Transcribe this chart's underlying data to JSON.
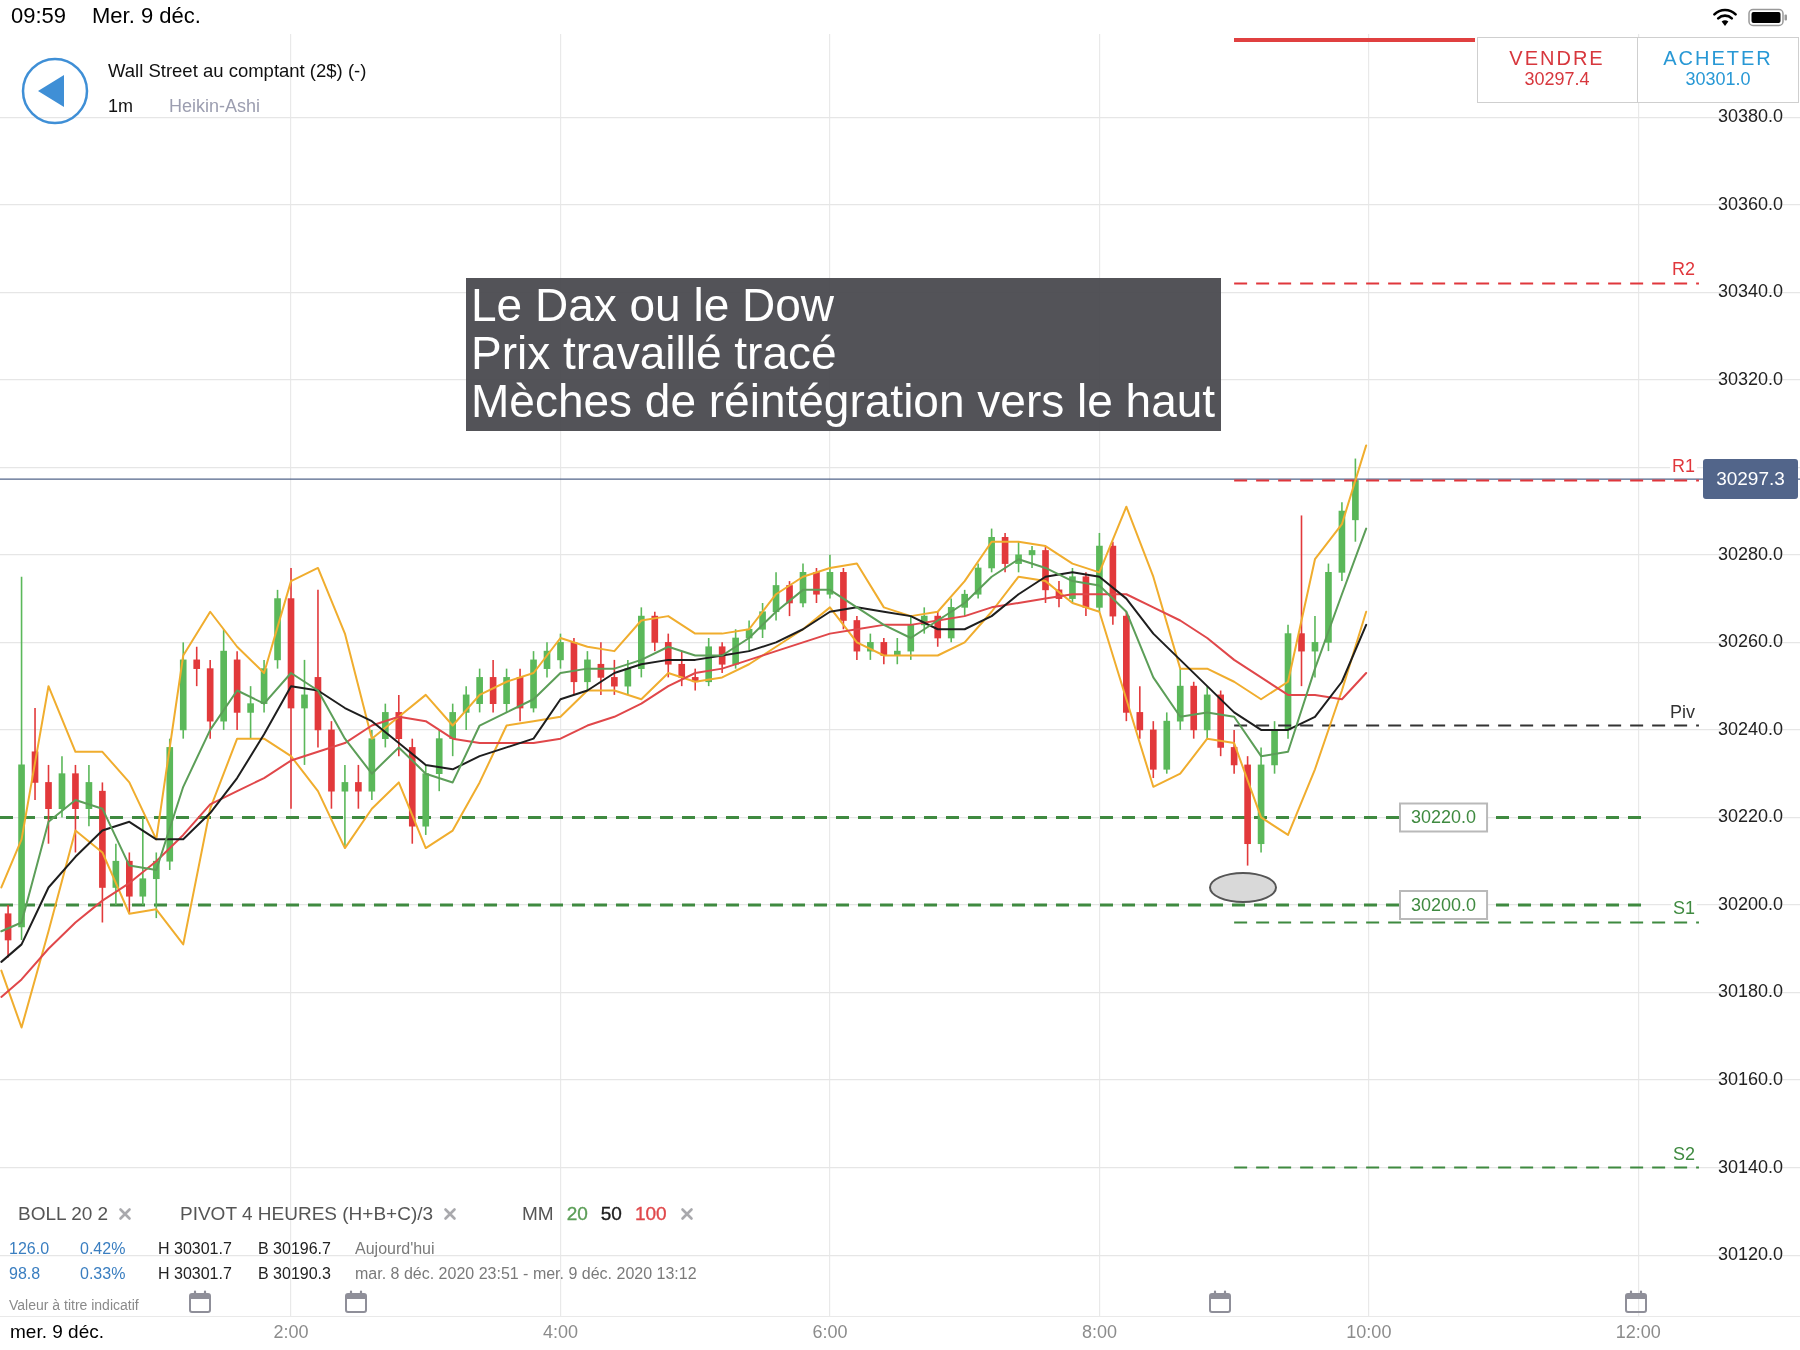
{
  "chart_data": {
    "type": "candlestick",
    "title": "Wall Street au comptant (2$) (-)",
    "legend_title": "MM",
    "annotations": [
      "09:59",
      "Mer. 9 déc.",
      "1m",
      "Heikin-Ashi",
      "VENDRE",
      "30297.4",
      "ACHETER",
      "30301.0",
      "Le Dax ou le Dow",
      "Prix travaillé tracé",
      "Mèches de réintégration vers le haut",
      "BOLL 20 2",
      "PIVOT 4 HEURES (H+B+C)/3",
      "126.0",
      "0.42%",
      "H 30301.7",
      "B 30196.7",
      "Aujourd'hui",
      "98.8",
      "0.33%",
      "H 30301.7",
      "B 30190.3",
      "mar. 8 déc. 2020 23:51 - mer. 9 déc. 2020 13:12",
      "Valeur à titre indicatif",
      "mer. 9 déc.",
      {
        "text": "R2",
        "y": 30342
      },
      {
        "text": "R1",
        "y": 30297
      },
      {
        "text": "Piv",
        "y": 30241
      },
      {
        "text": "S1",
        "y": 30196
      },
      {
        "text": "S2",
        "y": 30140
      },
      {
        "text": "30220.0",
        "y": 30220
      },
      {
        "text": "30200.0",
        "y": 30200
      },
      {
        "text": "30297.3",
        "y": 30297.3
      }
    ],
    "x": [
      -0.1,
      0,
      0.1,
      0.2,
      0.3,
      0.4,
      0.5,
      0.6,
      0.7,
      0.8,
      0.9,
      1,
      1.1,
      1.2,
      1.3,
      1.4,
      1.5,
      1.6,
      1.7,
      1.8,
      1.9,
      2,
      2.1,
      2.2,
      2.3,
      2.4,
      2.5,
      2.6,
      2.7,
      2.8,
      2.9,
      3,
      3.1,
      3.2,
      3.3,
      3.4,
      3.5,
      3.6,
      3.7,
      3.8,
      3.9,
      4,
      4.1,
      4.2,
      4.3,
      4.4,
      4.5,
      4.6,
      4.7,
      4.8,
      4.9,
      5,
      5.1,
      5.2,
      5.3,
      5.4,
      5.5,
      5.6,
      5.7,
      5.8,
      5.9,
      6,
      6.1,
      6.2,
      6.3,
      6.4,
      6.5,
      6.6,
      6.7,
      6.8,
      6.9,
      7,
      7.1,
      7.2,
      7.3,
      7.4,
      7.5,
      7.6,
      7.7,
      7.8,
      7.9,
      8,
      8.1,
      8.2,
      8.3,
      8.4,
      8.5,
      8.6,
      8.7,
      8.8,
      8.9,
      9,
      9.1,
      9.2,
      9.3,
      9.4,
      9.5,
      9.6,
      9.7,
      9.8,
      9.9
    ],
    "ohlc": [
      [
        30198,
        30200,
        30188,
        30192
      ],
      [
        30195,
        30275,
        30192,
        30232
      ],
      [
        30235,
        30245,
        30224,
        30228
      ],
      [
        30228,
        30232,
        30214,
        30222
      ],
      [
        30222,
        30234,
        30220,
        30230
      ],
      [
        30230,
        30232,
        30212,
        30222
      ],
      [
        30222,
        30232,
        30218,
        30228
      ],
      [
        30226,
        30228,
        30196,
        30204
      ],
      [
        30204,
        30214,
        30200,
        30210
      ],
      [
        30210,
        30212,
        30198,
        30202
      ],
      [
        30202,
        30220,
        30200,
        30206
      ],
      [
        30206,
        30212,
        30197,
        30210
      ],
      [
        30210,
        30238,
        30208,
        30236
      ],
      [
        30240,
        30260,
        30238,
        30256
      ],
      [
        30256,
        30259,
        30250,
        30254
      ],
      [
        30254,
        30256,
        30238,
        30242
      ],
      [
        30242,
        30263,
        30240,
        30258
      ],
      [
        30256,
        30258,
        30240,
        30244
      ],
      [
        30244,
        30250,
        30238,
        30246
      ],
      [
        30246,
        30256,
        30244,
        30254
      ],
      [
        30256,
        30272,
        30254,
        30270
      ],
      [
        30270,
        30277,
        30222,
        30245
      ],
      [
        30245,
        30256,
        30232,
        30248
      ],
      [
        30252,
        30272,
        30236,
        30240
      ],
      [
        30240,
        30242,
        30222,
        30226
      ],
      [
        30226,
        30232,
        30213,
        30228
      ],
      [
        30228,
        30232,
        30222,
        30226
      ],
      [
        30226,
        30240,
        30224,
        30238
      ],
      [
        30238,
        30246,
        30236,
        30244
      ],
      [
        30244,
        30248,
        30234,
        30238
      ],
      [
        30236,
        30238,
        30214,
        30218
      ],
      [
        30218,
        30232,
        30216,
        30230
      ],
      [
        30230,
        30240,
        30226,
        30238
      ],
      [
        30238,
        30246,
        30234,
        30244
      ],
      [
        30244,
        30250,
        30240,
        30248
      ],
      [
        30246,
        30254,
        30244,
        30252
      ],
      [
        30252,
        30256,
        30244,
        30246
      ],
      [
        30246,
        30254,
        30244,
        30252
      ],
      [
        30252,
        30254,
        30242,
        30245
      ],
      [
        30245,
        30258,
        30244,
        30256
      ],
      [
        30254,
        30260,
        30252,
        30258
      ],
      [
        30256,
        30262,
        30254,
        30260
      ],
      [
        30260,
        30261,
        30248,
        30251
      ],
      [
        30251,
        30258,
        30249,
        30256
      ],
      [
        30255,
        30260,
        30248,
        30252
      ],
      [
        30252,
        30256,
        30248,
        30250
      ],
      [
        30250,
        30256,
        30248,
        30254
      ],
      [
        30254,
        30268,
        30252,
        30266
      ],
      [
        30266,
        30267,
        30258,
        30260
      ],
      [
        30260,
        30262,
        30252,
        30255
      ],
      [
        30255,
        30258,
        30250,
        30252
      ],
      [
        30252,
        30254,
        30249,
        30251
      ],
      [
        30251,
        30261,
        30250,
        30259
      ],
      [
        30259,
        30260,
        30253,
        30255
      ],
      [
        30255,
        30263,
        30254,
        30261
      ],
      [
        30261,
        30265,
        30258,
        30263
      ],
      [
        30263,
        30269,
        30261,
        30267
      ],
      [
        30267,
        30276,
        30265,
        30273
      ],
      [
        30273,
        30274,
        30266,
        30269
      ],
      [
        30269,
        30278,
        30268,
        30276
      ],
      [
        30276,
        30277,
        30269,
        30271
      ],
      [
        30271,
        30280,
        30270,
        30276
      ],
      [
        30276,
        30277,
        30263,
        30265
      ],
      [
        30265,
        30266,
        30256,
        30258
      ],
      [
        30258,
        30262,
        30256,
        30260
      ],
      [
        30260,
        30261,
        30255,
        30257
      ],
      [
        30257,
        30261,
        30255,
        30258
      ],
      [
        30258,
        30266,
        30256,
        30264
      ],
      [
        30264,
        30268,
        30262,
        30266
      ],
      [
        30266,
        30267,
        30259,
        30261
      ],
      [
        30261,
        30270,
        30260,
        30268
      ],
      [
        30268,
        30272,
        30266,
        30271
      ],
      [
        30271,
        30278,
        30270,
        30277
      ],
      [
        30277,
        30286,
        30276,
        30284
      ],
      [
        30284,
        30285,
        30276,
        30278
      ],
      [
        30278,
        30283,
        30276,
        30280
      ],
      [
        30280,
        30282,
        30277,
        30281
      ],
      [
        30281,
        30282,
        30269,
        30272
      ],
      [
        30272,
        30274,
        30268,
        30270
      ],
      [
        30270,
        30277,
        30269,
        30275
      ],
      [
        30275,
        30276,
        30266,
        30268
      ],
      [
        30268,
        30285,
        30267,
        30282
      ],
      [
        30282,
        30283,
        30264,
        30266
      ],
      [
        30266,
        30267,
        30242,
        30244
      ],
      [
        30244,
        30250,
        30238,
        30240
      ],
      [
        30240,
        30242,
        30229,
        30231
      ],
      [
        30231,
        30244,
        30230,
        30242
      ],
      [
        30242,
        30254,
        30240,
        30250
      ],
      [
        30250,
        30251,
        30238,
        30240
      ],
      [
        30240,
        30250,
        30238,
        30248
      ],
      [
        30248,
        30249,
        30234,
        30236
      ],
      [
        30236,
        30240,
        30230,
        30232
      ],
      [
        30232,
        30234,
        30209,
        30214
      ],
      [
        30214,
        30236,
        30212,
        30232
      ],
      [
        30232,
        30242,
        30230,
        30240
      ],
      [
        30240,
        30264,
        30238,
        30262
      ],
      [
        30262,
        30289,
        30250,
        30258
      ],
      [
        30258,
        30266,
        30252,
        30260
      ],
      [
        30260,
        30278,
        30258,
        30276
      ],
      [
        30276,
        30292,
        30274,
        30290
      ],
      [
        30288,
        30302,
        30283,
        30297
      ]
    ],
    "colors": [
      "#e2393b",
      "#5bb85a",
      "#e2393b",
      "#e2393b",
      "#5bb85a",
      "#e2393b",
      "#5bb85a",
      "#e2393b",
      "#5bb85a",
      "#e2393b",
      "#5bb85a",
      "#5bb85a",
      "#5bb85a",
      "#5bb85a",
      "#e2393b",
      "#e2393b",
      "#5bb85a",
      "#e2393b",
      "#5bb85a",
      "#5bb85a",
      "#5bb85a",
      "#e2393b",
      "#5bb85a",
      "#e2393b",
      "#e2393b",
      "#5bb85a",
      "#e2393b",
      "#5bb85a",
      "#5bb85a",
      "#e2393b",
      "#e2393b",
      "#5bb85a",
      "#5bb85a",
      "#5bb85a",
      "#5bb85a",
      "#5bb85a",
      "#e2393b",
      "#5bb85a",
      "#e2393b",
      "#5bb85a",
      "#5bb85a",
      "#5bb85a",
      "#e2393b",
      "#5bb85a",
      "#e2393b",
      "#e2393b",
      "#5bb85a",
      "#5bb85a",
      "#e2393b",
      "#e2393b",
      "#e2393b",
      "#e2393b",
      "#5bb85a",
      "#e2393b",
      "#5bb85a",
      "#5bb85a",
      "#5bb85a",
      "#5bb85a",
      "#e2393b",
      "#5bb85a",
      "#e2393b",
      "#5bb85a",
      "#e2393b",
      "#e2393b",
      "#5bb85a",
      "#e2393b",
      "#5bb85a",
      "#5bb85a",
      "#5bb85a",
      "#e2393b",
      "#5bb85a",
      "#5bb85a",
      "#5bb85a",
      "#5bb85a",
      "#e2393b",
      "#5bb85a",
      "#5bb85a",
      "#e2393b",
      "#e2393b",
      "#5bb85a",
      "#e2393b",
      "#5bb85a",
      "#e2393b",
      "#e2393b",
      "#e2393b",
      "#e2393b",
      "#5bb85a",
      "#5bb85a",
      "#e2393b",
      "#5bb85a",
      "#e2393b",
      "#e2393b",
      "#e2393b",
      "#5bb85a",
      "#5bb85a",
      "#5bb85a",
      "#e2393b",
      "#5bb85a",
      "#5bb85a",
      "#5bb85a",
      "#5bb85a"
    ],
    "series": [
      {
        "name": "20",
        "type": "line",
        "color": "#5c9e58",
        "x": [
          -0.15,
          0,
          0.2,
          0.4,
          0.6,
          0.8,
          1,
          1.2,
          1.4,
          1.6,
          1.8,
          2,
          2.2,
          2.4,
          2.6,
          2.8,
          3,
          3.2,
          3.4,
          3.6,
          3.8,
          4,
          4.2,
          4.4,
          4.6,
          4.8,
          5,
          5.2,
          5.4,
          5.6,
          5.8,
          6,
          6.2,
          6.4,
          6.6,
          6.8,
          7,
          7.2,
          7.4,
          7.6,
          7.8,
          8,
          8.2,
          8.4,
          8.6,
          8.8,
          9,
          9.2,
          9.4,
          9.6,
          9.8,
          9.98
        ],
        "values": [
          30194,
          30196,
          30219,
          30224,
          30222,
          30209,
          30208,
          30227,
          30240,
          30249,
          30246,
          30253,
          30249,
          30238,
          30230,
          30236,
          30230,
          30228,
          30241,
          30244,
          30247,
          30253,
          30254,
          30254,
          30256,
          30259,
          30257,
          30257,
          30261,
          30267,
          30272,
          30272,
          30268,
          30264,
          30261,
          30265,
          30269,
          30275,
          30279,
          30277,
          30274,
          30273,
          30267,
          30252,
          30243,
          30244,
          30243,
          30234,
          30235,
          30254,
          30271,
          30286
        ]
      },
      {
        "name": "50",
        "type": "line",
        "color": "#1e1e1e",
        "x": [
          -0.15,
          0,
          0.2,
          0.4,
          0.6,
          0.8,
          1,
          1.2,
          1.4,
          1.6,
          1.8,
          2,
          2.2,
          2.4,
          2.6,
          2.8,
          3,
          3.2,
          3.4,
          3.6,
          3.8,
          4,
          4.2,
          4.4,
          4.6,
          4.8,
          5,
          5.2,
          5.4,
          5.6,
          5.8,
          6,
          6.2,
          6.4,
          6.6,
          6.8,
          7,
          7.2,
          7.4,
          7.6,
          7.8,
          8,
          8.2,
          8.4,
          8.6,
          8.8,
          9,
          9.2,
          9.4,
          9.6,
          9.8,
          9.98
        ],
        "values": [
          30187,
          30191,
          30204,
          30211,
          30217,
          30219,
          30215,
          30215,
          30221,
          30229,
          30239,
          30250,
          30249,
          30245,
          30242,
          30237,
          30232,
          30231,
          30234,
          30236,
          30238,
          30247,
          30249,
          30253,
          30255,
          30256,
          30256,
          30257,
          30258,
          30260,
          30263,
          30267,
          30268,
          30267,
          30266,
          30263,
          30263,
          30266,
          30271,
          30275,
          30276,
          30275,
          30270,
          30262,
          30256,
          30250,
          30244,
          30240,
          30240,
          30243,
          30251,
          30264
        ]
      },
      {
        "name": "100",
        "type": "line",
        "color": "#e0474a",
        "x": [
          -0.15,
          0,
          0.2,
          0.4,
          0.6,
          0.8,
          1,
          1.2,
          1.4,
          1.6,
          1.8,
          2,
          2.2,
          2.4,
          2.6,
          2.8,
          3,
          3.2,
          3.4,
          3.6,
          3.8,
          4,
          4.2,
          4.4,
          4.6,
          4.8,
          5,
          5.2,
          5.4,
          5.6,
          5.8,
          6,
          6.2,
          6.4,
          6.6,
          6.8,
          7,
          7.2,
          7.4,
          7.6,
          7.8,
          8,
          8.2,
          8.4,
          8.6,
          8.8,
          9,
          9.2,
          9.4,
          9.6,
          9.8,
          9.98
        ],
        "values": [
          30179,
          30183,
          30190,
          30196,
          30201,
          30205,
          30210,
          30216,
          30223,
          30226,
          30229,
          30233,
          30235,
          30237,
          30241,
          30243,
          30242,
          30238,
          30237,
          30237,
          30237,
          30238,
          30241,
          30243,
          30246,
          30250,
          30253,
          30254,
          30256,
          30258,
          30260,
          30262,
          30263,
          30264,
          30264,
          30265,
          30266,
          30268,
          30269,
          30270,
          30271,
          30271,
          30271,
          30268,
          30265,
          30261,
          30256,
          30252,
          30248,
          30248,
          30247,
          30253
        ]
      },
      {
        "type": "line",
        "color": "#f0ad2e",
        "x": [
          -0.15,
          0,
          0.2,
          0.4,
          0.6,
          0.8,
          1,
          1.2,
          1.4,
          1.6,
          1.8,
          2,
          2.2,
          2.4,
          2.6,
          2.8,
          3,
          3.2,
          3.4,
          3.6,
          3.8,
          4,
          4.2,
          4.4,
          4.6,
          4.8,
          5,
          5.2,
          5.4,
          5.6,
          5.8,
          6,
          6.2,
          6.4,
          6.6,
          6.8,
          7,
          7.2,
          7.4,
          7.6,
          7.8,
          8,
          8.2,
          8.4,
          8.6,
          8.8,
          9,
          9.2,
          9.4,
          9.6,
          9.8,
          9.98
        ],
        "values": [
          30204,
          30215,
          30250,
          30235,
          30235,
          30228,
          30215,
          30257,
          30267,
          30259,
          30253,
          30274,
          30277,
          30262,
          30238,
          30243,
          30248,
          30241,
          30248,
          30251,
          30253,
          30261,
          30259,
          30258,
          30265,
          30266,
          30262,
          30262,
          30263,
          30271,
          30275,
          30277,
          30278,
          30268,
          30266,
          30267,
          30274,
          30283,
          30283,
          30282,
          30278,
          30276,
          30291,
          30275,
          30254,
          30254,
          30251,
          30247,
          30251,
          30279,
          30287,
          30305
        ]
      },
      {
        "type": "line",
        "color": "#f0ad2e",
        "x": [
          -0.15,
          0,
          0.2,
          0.4,
          0.6,
          0.8,
          1,
          1.2,
          1.4,
          1.6,
          1.8,
          2,
          2.2,
          2.4,
          2.6,
          2.8,
          3,
          3.2,
          3.4,
          3.6,
          3.8,
          4,
          4.2,
          4.4,
          4.6,
          4.8,
          5,
          5.2,
          5.4,
          5.6,
          5.8,
          6,
          6.2,
          6.4,
          6.6,
          6.8,
          7,
          7.2,
          7.4,
          7.6,
          7.8,
          8,
          8.2,
          8.4,
          8.6,
          8.8,
          9,
          9.2,
          9.4,
          9.6,
          9.8,
          9.98
        ],
        "values": [
          30185,
          30172,
          30194,
          30217,
          30212,
          30198,
          30199,
          30191,
          30222,
          30238,
          30238,
          30234,
          30226,
          30213,
          30222,
          30228,
          30213,
          30217,
          30228,
          30241,
          30242,
          30243,
          30249,
          30249,
          30247,
          30253,
          30251,
          30252,
          30255,
          30259,
          30263,
          30268,
          30260,
          30257,
          30257,
          30257,
          30260,
          30267,
          30275,
          30274,
          30269,
          30267,
          30247,
          30227,
          30230,
          30238,
          30237,
          30220,
          30216,
          30231,
          30249,
          30267
        ]
      },
      {
        "type": "line",
        "color": "#e0373c",
        "line_style": "dashed",
        "x": [
          9,
          12.45
        ],
        "values": [
          30342,
          30342
        ]
      },
      {
        "type": "line",
        "color": "#e0373c",
        "line_style": "dashed",
        "x": [
          9,
          12.45
        ],
        "values": [
          30297,
          30297
        ]
      },
      {
        "type": "line",
        "color": "#333333",
        "line_style": "dashed",
        "x": [
          9,
          12.45
        ],
        "values": [
          30241,
          30241
        ]
      },
      {
        "type": "line",
        "color": "#3f8a40",
        "line_style": "dashed",
        "x": [
          9,
          12.45
        ],
        "values": [
          30196,
          30196
        ]
      },
      {
        "type": "line",
        "color": "#3f8a40",
        "line_style": "dashed",
        "x": [
          9,
          12.45
        ],
        "values": [
          30140,
          30140
        ]
      }
    ],
    "ref_lines": [
      {
        "axis": "y",
        "value": 30220,
        "color": "#3f8a40",
        "line_style": "dashed"
      },
      {
        "axis": "y",
        "value": 30200,
        "color": "#3f8a40",
        "line_style": "dashed"
      },
      {
        "axis": "y",
        "value": 30297.3,
        "color": "#52658a",
        "line_style": "solid"
      }
    ],
    "xlim": [
      -0.16,
      13.2
    ],
    "xticks": [
      {
        "value": 2,
        "label": "2:00"
      },
      {
        "value": 4,
        "label": "4:00"
      },
      {
        "value": 6,
        "label": "6:00"
      },
      {
        "value": 8,
        "label": "8:00"
      },
      {
        "value": 10,
        "label": "10:00"
      },
      {
        "value": 12,
        "label": "12:00"
      }
    ],
    "ylim": [
      30106,
      30399
    ],
    "yticks": [
      {
        "value": 30120,
        "label": "30120.0"
      },
      {
        "value": 30140,
        "label": "30140.0"
      },
      {
        "value": 30160,
        "label": "30160.0"
      },
      {
        "value": 30180,
        "label": "30180.0"
      },
      {
        "value": 30200,
        "label": "30200.0"
      },
      {
        "value": 30220,
        "label": "30220.0"
      },
      {
        "value": 30240,
        "label": "30240.0"
      },
      {
        "value": 30260,
        "label": "30260.0"
      },
      {
        "value": 30280,
        "label": "30280.0"
      },
      {
        "value": 30300,
        "label": null
      },
      {
        "value": 30320,
        "label": "30320.0"
      },
      {
        "value": 30340,
        "label": "30340.0"
      },
      {
        "value": 30360,
        "label": "30360.0"
      },
      {
        "value": 30380,
        "label": "30380.0"
      }
    ],
    "grid": true,
    "legend": "bottom left",
    "marker": "none"
  }
}
